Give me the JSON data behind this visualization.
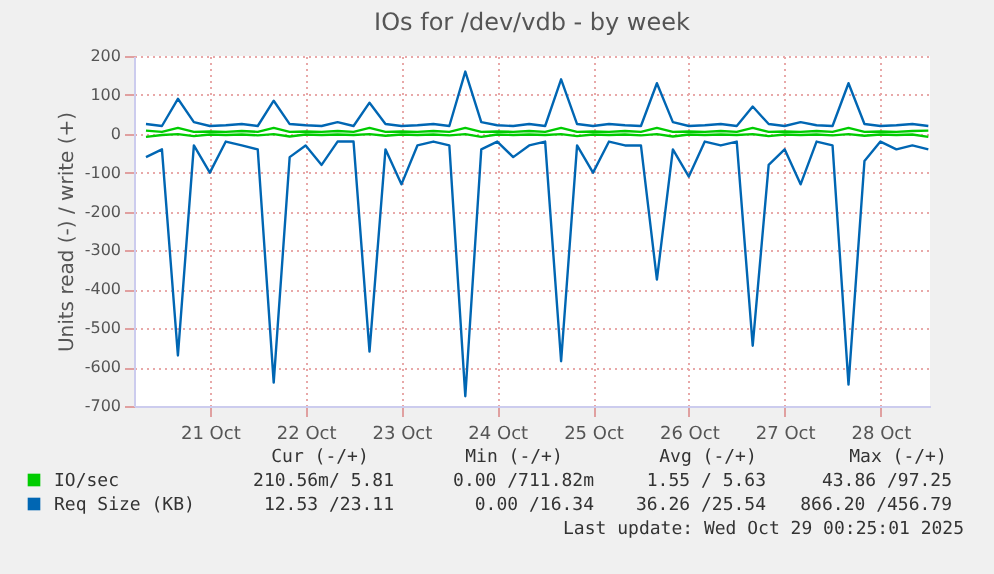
{
  "chart_data": {
    "type": "line",
    "title": "IOs for /dev/vdb - by week",
    "ylabel": "Units read (-) / write (+)",
    "x": [
      "2025-10-20T20:00",
      "2025-10-21T00:00",
      "2025-10-21T04:00",
      "2025-10-21T08:00",
      "2025-10-21T12:00",
      "2025-10-21T16:00",
      "2025-10-21T20:00",
      "2025-10-22T00:00",
      "2025-10-22T04:00",
      "2025-10-22T08:00",
      "2025-10-22T12:00",
      "2025-10-22T16:00",
      "2025-10-22T20:00",
      "2025-10-23T00:00",
      "2025-10-23T04:00",
      "2025-10-23T08:00",
      "2025-10-23T12:00",
      "2025-10-23T16:00",
      "2025-10-23T20:00",
      "2025-10-24T00:00",
      "2025-10-24T04:00",
      "2025-10-24T08:00",
      "2025-10-24T12:00",
      "2025-10-24T16:00",
      "2025-10-24T20:00",
      "2025-10-25T00:00",
      "2025-10-25T04:00",
      "2025-10-25T08:00",
      "2025-10-25T12:00",
      "2025-10-25T16:00",
      "2025-10-25T20:00",
      "2025-10-26T00:00",
      "2025-10-26T04:00",
      "2025-10-26T08:00",
      "2025-10-26T12:00",
      "2025-10-26T16:00",
      "2025-10-26T20:00",
      "2025-10-27T00:00",
      "2025-10-27T04:00",
      "2025-10-27T08:00",
      "2025-10-27T12:00",
      "2025-10-27T16:00",
      "2025-10-27T20:00",
      "2025-10-28T00:00",
      "2025-10-28T04:00",
      "2025-10-28T08:00",
      "2025-10-28T12:00",
      "2025-10-28T16:00",
      "2025-10-28T20:00",
      "2025-10-29T00:00"
    ],
    "series": [
      {
        "color": "#0066b3",
        "values": [
          -60,
          -40,
          -570,
          -30,
          -100,
          -20,
          -30,
          -40,
          -640,
          -60,
          -30,
          -80,
          -20,
          -20,
          -560,
          -40,
          -130,
          -30,
          -20,
          -30,
          -675,
          -40,
          -20,
          -60,
          -30,
          -20,
          -585,
          -30,
          -100,
          -20,
          -30,
          -30,
          -375,
          -40,
          -110,
          -20,
          -30,
          -20,
          -545,
          -80,
          -40,
          -130,
          -20,
          -30,
          -645,
          -70,
          -20,
          -40,
          -30,
          -40
        ]
      },
      {
        "name": "Req Size (KB)",
        "color": "#0066b3",
        "values": [
          25,
          20,
          90,
          30,
          20,
          22,
          25,
          20,
          85,
          25,
          22,
          20,
          30,
          20,
          80,
          25,
          20,
          22,
          25,
          20,
          160,
          30,
          22,
          20,
          25,
          20,
          140,
          25,
          20,
          25,
          22,
          20,
          130,
          30,
          20,
          22,
          25,
          20,
          70,
          25,
          20,
          30,
          22,
          20,
          130,
          25,
          20,
          22,
          25,
          20
        ]
      },
      {
        "color": "#00cc00",
        "values": [
          -8,
          -3,
          -1,
          -6,
          -2,
          -3,
          -2,
          -4,
          -1,
          -7,
          -2,
          -3,
          -2,
          -3,
          -1,
          -5,
          -2,
          -3,
          -2,
          -4,
          -1,
          -8,
          -2,
          -3,
          -2,
          -3,
          -1,
          -6,
          -2,
          -3,
          -2,
          -4,
          -1,
          -7,
          -2,
          -3,
          -2,
          -3,
          -1,
          -6,
          -2,
          -3,
          -2,
          -4,
          -1,
          -5,
          -2,
          -3,
          -2,
          -8
        ]
      },
      {
        "name": "IO/sec",
        "color": "#00cc00",
        "values": [
          8,
          5,
          15,
          5,
          6,
          5,
          7,
          5,
          15,
          5,
          6,
          5,
          7,
          5,
          15,
          5,
          6,
          5,
          7,
          5,
          15,
          5,
          6,
          5,
          7,
          5,
          15,
          5,
          6,
          5,
          7,
          5,
          15,
          5,
          6,
          5,
          7,
          5,
          15,
          5,
          6,
          5,
          7,
          5,
          15,
          5,
          6,
          5,
          7,
          8
        ]
      }
    ],
    "xlim": [
      "2025-10-20T17:00",
      "2025-10-29T00:25"
    ],
    "xticks": [
      {
        "value": "2025-10-21T12:00",
        "label": "21 Oct"
      },
      {
        "value": "2025-10-22T12:00",
        "label": "22 Oct"
      },
      {
        "value": "2025-10-23T12:00",
        "label": "23 Oct"
      },
      {
        "value": "2025-10-24T12:00",
        "label": "24 Oct"
      },
      {
        "value": "2025-10-25T12:00",
        "label": "25 Oct"
      },
      {
        "value": "2025-10-26T12:00",
        "label": "26 Oct"
      },
      {
        "value": "2025-10-27T12:00",
        "label": "27 Oct"
      },
      {
        "value": "2025-10-28T12:00",
        "label": "28 Oct"
      }
    ],
    "ylim": [
      -700,
      200
    ],
    "yticks": [
      -700,
      -600,
      -500,
      -400,
      -300,
      -200,
      -100,
      0,
      100,
      200
    ],
    "grid": true,
    "legend": "bottom",
    "line_style": "solid",
    "marker": "none",
    "annotations": [
      "Cur (-/+)",
      "Min (-/+)",
      "Avg (-/+)",
      "Max (-/+)",
      "210.56m/ 5.81",
      "0.00 /711.82m",
      "1.55 / 5.63",
      "43.86 /97.25",
      "12.53 /23.11",
      "0.00 /16.34",
      "36.26 /25.54",
      "866.20 /456.79",
      "Last update: Wed Oct 29 00:25:01 2025"
    ]
  }
}
